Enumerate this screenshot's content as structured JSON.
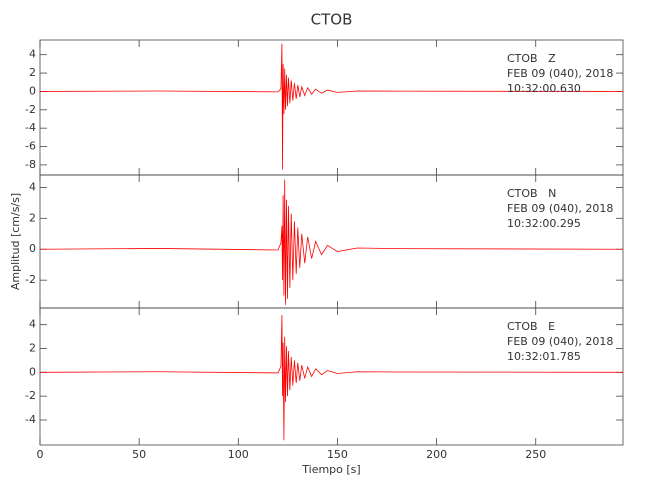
{
  "chart_data": [
    {
      "type": "line",
      "title": "CTOB",
      "annotation": [
        "CTOB   Z",
        "FEB 09 (040), 2018",
        "10:32:00.630"
      ],
      "color": "#ff0000",
      "x": [
        0,
        60,
        120,
        121.5,
        122,
        122.3,
        122.6,
        123,
        123.4,
        123.8,
        124.3,
        124.8,
        125.3,
        126,
        126.7,
        127.5,
        128.3,
        129.2,
        130,
        131,
        132,
        133.5,
        135,
        137,
        139,
        142,
        145,
        150,
        160,
        180,
        294
      ],
      "values": [
        0,
        0.05,
        -0.05,
        0.3,
        5.2,
        -8.5,
        3.0,
        -2.5,
        2.5,
        -2.0,
        1.8,
        -1.6,
        1.5,
        -1.3,
        1.2,
        -1.0,
        0.9,
        -0.8,
        0.7,
        -0.6,
        0.5,
        -0.45,
        0.4,
        -0.3,
        0.25,
        -0.2,
        0.15,
        -0.1,
        0.05,
        0.03,
        0
      ],
      "xlim": [
        0,
        294
      ],
      "ylim": [
        -9.1,
        5.6
      ],
      "yticks": [
        -8,
        -6,
        -4,
        -2,
        0,
        2,
        4
      ]
    },
    {
      "type": "line",
      "ylabel": "Amplitud [cm/s/s]",
      "annotation": [
        "CTOB   N",
        "FEB 09 (040), 2018",
        "10:32:00.295"
      ],
      "color": "#ff0000",
      "x": [
        0,
        60,
        120,
        121.5,
        122,
        122.3,
        122.6,
        123,
        123.4,
        123.8,
        124.3,
        124.8,
        125.3,
        126,
        126.7,
        127.5,
        128.3,
        129.2,
        130,
        131,
        132,
        133.5,
        135,
        137,
        139,
        142,
        145,
        150,
        160,
        180,
        294
      ],
      "values": [
        0,
        0.05,
        -0.05,
        0.4,
        1.5,
        -2.0,
        3.5,
        -3.0,
        4.5,
        -3.6,
        3.2,
        -3.2,
        2.8,
        -2.5,
        2.3,
        -2.0,
        1.8,
        -1.6,
        1.4,
        -1.2,
        1.0,
        -0.9,
        0.8,
        -0.6,
        0.5,
        -0.35,
        0.25,
        -0.15,
        0.08,
        0.04,
        0
      ],
      "xlim": [
        0,
        294
      ],
      "ylim": [
        -3.8,
        4.8
      ],
      "yticks": [
        -2,
        0,
        2,
        4
      ]
    },
    {
      "type": "line",
      "xlabel": "Tiempo [s]",
      "annotation": [
        "CTOB   E",
        "FEB 09 (040), 2018",
        "10:32:01.785"
      ],
      "color": "#ff0000",
      "x": [
        0,
        60,
        120,
        121.5,
        122,
        122.3,
        122.6,
        123,
        123.4,
        123.8,
        124.3,
        124.8,
        125.3,
        126,
        126.7,
        127.5,
        128.3,
        129.2,
        130,
        131,
        132,
        133.5,
        135,
        137,
        139,
        142,
        145,
        150,
        160,
        180,
        294
      ],
      "values": [
        0,
        0.05,
        -0.05,
        0.5,
        4.8,
        -2.0,
        2.5,
        -5.7,
        3.0,
        -2.5,
        2.2,
        -2.0,
        1.8,
        -1.5,
        1.3,
        -1.1,
        1.0,
        -0.9,
        0.8,
        -0.7,
        0.6,
        -0.5,
        0.45,
        -0.35,
        0.3,
        -0.2,
        0.15,
        -0.1,
        0.05,
        0.03,
        0
      ],
      "xlim": [
        0,
        294
      ],
      "ylim": [
        -6.1,
        5.4
      ],
      "yticks": [
        -4,
        -2,
        0,
        2,
        4
      ],
      "xticks": [
        0,
        50,
        100,
        150,
        200,
        250
      ]
    }
  ]
}
